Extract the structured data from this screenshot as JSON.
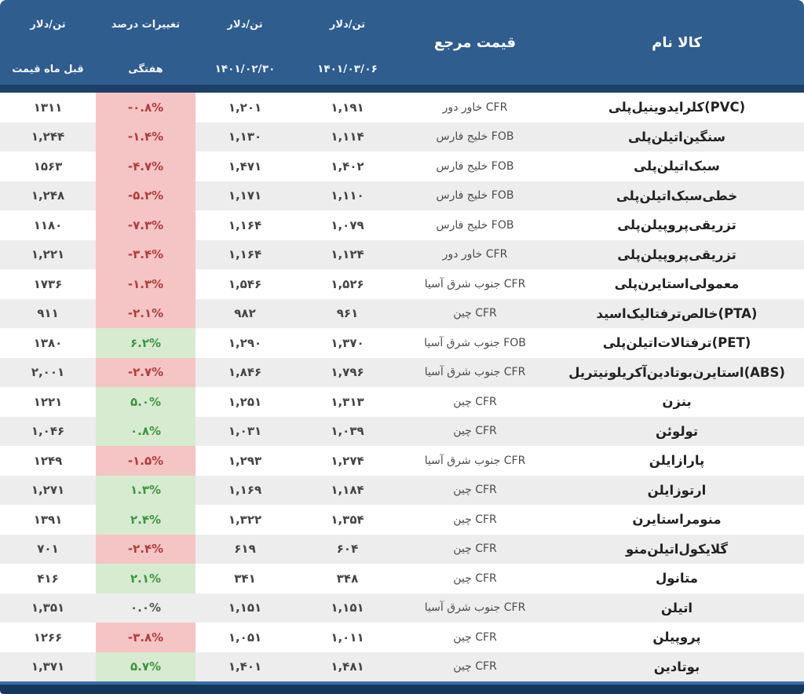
{
  "header": {
    "col_product": "نام کالا",
    "col_reference": "مرجع قیمت",
    "col_price_current": {
      "unit": "دلار/تن",
      "date": "۱۴۰۱/۰۳/۰۶"
    },
    "col_price_prev": {
      "unit": "دلار/تن",
      "date": "۱۴۰۱/۰۲/۳۰"
    },
    "col_change": {
      "line1": "درصد تغییرات",
      "line2": "هفتگی"
    },
    "col_prev_month": {
      "line1": "دلار/تن",
      "line2": "قیمت ماه قبل"
    }
  },
  "colors": {
    "header_blue": "#2e5d8e",
    "header_strip": "#1d4066",
    "row_alt": "#ededed",
    "down_bg": "#f5c5c5",
    "down_text": "#b43b3b",
    "up_bg": "#d7ebd1",
    "up_text": "#3f9440",
    "footer_line": "#3b6fa2",
    "footer_bar": "#16375c"
  },
  "rows": [
    {
      "name": "پلی وینیل کلراید (PVC)",
      "reference": "CFR خاور دور",
      "price_0306": "۱,۱۹۱",
      "price_0230": "۱,۲۰۱",
      "change": "-۰.۸%",
      "trend": "down",
      "prev_month": "۱۳۱۱"
    },
    {
      "name": "پلی اتیلن سنگین",
      "reference": "FOB خلیج فارس",
      "price_0306": "۱,۱۱۴",
      "price_0230": "۱,۱۳۰",
      "change": "-۱.۴%",
      "trend": "down",
      "prev_month": "۱,۲۴۴"
    },
    {
      "name": "پلی اتیلن سبک",
      "reference": "FOB خلیج فارس",
      "price_0306": "۱,۴۰۲",
      "price_0230": "۱,۴۷۱",
      "change": "-۴.۷%",
      "trend": "down",
      "prev_month": "۱۵۶۳"
    },
    {
      "name": "پلی اتیلن سبک خطی",
      "reference": "FOB خلیج فارس",
      "price_0306": "۱,۱۱۰",
      "price_0230": "۱,۱۷۱",
      "change": "-۵.۲%",
      "trend": "down",
      "prev_month": "۱,۲۴۸"
    },
    {
      "name": "پلی پروپیلن تزریقی",
      "reference": "FOB خلیج فارس",
      "price_0306": "۱,۰۷۹",
      "price_0230": "۱,۱۶۴",
      "change": "-۷.۳%",
      "trend": "down",
      "prev_month": "۱۱۸۰"
    },
    {
      "name": "پلی پروپیلن تزریقی",
      "reference": "CFR خاور دور",
      "price_0306": "۱,۱۲۴",
      "price_0230": "۱,۱۶۴",
      "change": "-۳.۴%",
      "trend": "down",
      "prev_month": "۱,۲۲۱"
    },
    {
      "name": "پلی استایرن معمولی",
      "reference": "CFR جنوب شرق آسیا",
      "price_0306": "۱,۵۲۶",
      "price_0230": "۱,۵۴۶",
      "change": "-۱.۳%",
      "trend": "down",
      "prev_month": "۱۷۳۶"
    },
    {
      "name": "اسید ترفتالیک خالص (PTA)",
      "reference": "CFR چین",
      "price_0306": "۹۶۱",
      "price_0230": "۹۸۲",
      "change": "-۲.۱%",
      "trend": "down",
      "prev_month": "۹۱۱"
    },
    {
      "name": "پلی اتیلن ترفتالات (PET)",
      "reference": "FOB جنوب شرق آسیا",
      "price_0306": "۱,۳۷۰",
      "price_0230": "۱,۲۹۰",
      "change": "۶.۲%",
      "trend": "up",
      "prev_month": "۱۳۸۰"
    },
    {
      "name": "آکریلونیتریل بوتادین استایرن (ABS)",
      "reference": "CFR جنوب شرق آسیا",
      "price_0306": "۱,۷۹۶",
      "price_0230": "۱,۸۴۶",
      "change": "-۲.۷%",
      "trend": "down",
      "prev_month": "۲,۰۰۱"
    },
    {
      "name": "بنزن",
      "reference": "CFR چین",
      "price_0306": "۱,۳۱۳",
      "price_0230": "۱,۲۵۱",
      "change": "۵.۰%",
      "trend": "up",
      "prev_month": "۱۲۲۱"
    },
    {
      "name": "تولوئن",
      "reference": "CFR چین",
      "price_0306": "۱,۰۳۹",
      "price_0230": "۱,۰۳۱",
      "change": "۰.۸%",
      "trend": "up",
      "prev_month": "۱,۰۴۶"
    },
    {
      "name": "پارازایلن",
      "reference": "CFR جنوب شرق آسیا",
      "price_0306": "۱,۲۷۴",
      "price_0230": "۱,۲۹۳",
      "change": "-۱.۵%",
      "trend": "down",
      "prev_month": "۱۲۴۹"
    },
    {
      "name": "ارتوزایلن",
      "reference": "CFR چین",
      "price_0306": "۱,۱۸۴",
      "price_0230": "۱,۱۶۹",
      "change": "۱.۳%",
      "trend": "up",
      "prev_month": "۱,۲۷۱"
    },
    {
      "name": "استایرن منومر",
      "reference": "CFR چین",
      "price_0306": "۱,۳۵۴",
      "price_0230": "۱,۳۲۲",
      "change": "۲.۴%",
      "trend": "up",
      "prev_month": "۱۳۹۱"
    },
    {
      "name": "منو اتیلن گلایکول",
      "reference": "CFR چین",
      "price_0306": "۶۰۴",
      "price_0230": "۶۱۹",
      "change": "-۲.۴%",
      "trend": "down",
      "prev_month": "۷۰۱"
    },
    {
      "name": "متانول",
      "reference": "CFR چین",
      "price_0306": "۳۴۸",
      "price_0230": "۳۴۱",
      "change": "۲.۱%",
      "trend": "up",
      "prev_month": "۴۱۶"
    },
    {
      "name": "اتیلن",
      "reference": "CFR جنوب شرق آسیا",
      "price_0306": "۱,۱۵۱",
      "price_0230": "۱,۱۵۱",
      "change": "۰.۰%",
      "trend": "flat",
      "prev_month": "۱,۳۵۱"
    },
    {
      "name": "پروپیلن",
      "reference": "CFR چین",
      "price_0306": "۱,۰۱۱",
      "price_0230": "۱,۰۵۱",
      "change": "-۳.۸%",
      "trend": "down",
      "prev_month": "۱۲۶۶"
    },
    {
      "name": "بوتادین",
      "reference": "CFR چین",
      "price_0306": "۱,۴۸۱",
      "price_0230": "۱,۴۰۱",
      "change": "۵.۷%",
      "trend": "up",
      "prev_month": "۱,۳۷۱"
    }
  ],
  "chart_data": {
    "type": "table",
    "title": "",
    "columns": [
      "نام کالا",
      "مرجع قیمت",
      "دلار/تن ۱۴۰۱/۰۳/۰۶",
      "دلار/تن ۱۴۰۱/۰۲/۳۰",
      "درصد تغییرات هفتگی",
      "دلار/تن قیمت ماه قبل"
    ],
    "rows": [
      [
        "پلی وینیل کلراید (PVC)",
        "CFR خاور دور",
        1191,
        1201,
        -0.8,
        1311
      ],
      [
        "پلی اتیلن سنگین",
        "FOB خلیج فارس",
        1114,
        1130,
        -1.4,
        1244
      ],
      [
        "پلی اتیلن سبک",
        "FOB خلیج فارس",
        1402,
        1471,
        -4.7,
        1563
      ],
      [
        "پلی اتیلن سبک خطی",
        "FOB خلیج فارس",
        1110,
        1171,
        -5.2,
        1248
      ],
      [
        "پلی پروپیلن تزریقی",
        "FOB خلیج فارس",
        1079,
        1164,
        -7.3,
        1180
      ],
      [
        "پلی پروپیلن تزریقی",
        "CFR خاور دور",
        1124,
        1164,
        -3.4,
        1221
      ],
      [
        "پلی استایرن معمولی",
        "CFR جنوب شرق آسیا",
        1526,
        1546,
        -1.3,
        1736
      ],
      [
        "اسید ترفتالیک خالص (PTA)",
        "CFR چین",
        961,
        982,
        -2.1,
        911
      ],
      [
        "پلی اتیلن ترفتالات (PET)",
        "FOB جنوب شرق آسیا",
        1370,
        1290,
        6.2,
        1380
      ],
      [
        "آکریلونیتریل بوتادین استایرن (ABS)",
        "CFR جنوب شرق آسیا",
        1796,
        1846,
        -2.7,
        2001
      ],
      [
        "بنزن",
        "CFR چین",
        1313,
        1251,
        5.0,
        1221
      ],
      [
        "تولوئن",
        "CFR چین",
        1039,
        1031,
        0.8,
        1046
      ],
      [
        "پارازایلن",
        "CFR جنوب شرق آسیا",
        1274,
        1293,
        -1.5,
        1249
      ],
      [
        "ارتوزایلن",
        "CFR چین",
        1184,
        1169,
        1.3,
        1271
      ],
      [
        "استایرن منومر",
        "CFR چین",
        1354,
        1322,
        2.4,
        1391
      ],
      [
        "منو اتیلن گلایکول",
        "CFR چین",
        604,
        619,
        -2.4,
        701
      ],
      [
        "متانول",
        "CFR چین",
        348,
        341,
        2.1,
        416
      ],
      [
        "اتیلن",
        "CFR جنوب شرق آسیا",
        1151,
        1151,
        0.0,
        1351
      ],
      [
        "پروپیلن",
        "CFR چین",
        1011,
        1051,
        -3.8,
        1266
      ],
      [
        "بوتادین",
        "CFR چین",
        1481,
        1401,
        5.7,
        1371
      ]
    ]
  }
}
